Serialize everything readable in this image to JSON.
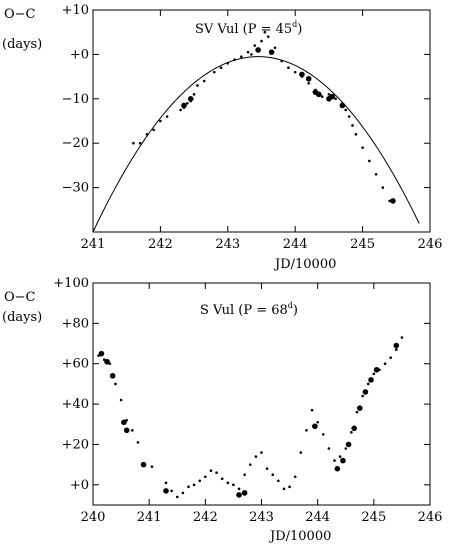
{
  "chart_data": [
    {
      "type": "scatter",
      "title_main": "SV Vul (P = 45",
      "title_sup": "d",
      "title_end": ")",
      "ylabel_line1": "O−C",
      "ylabel_line2": "(days)",
      "xlabel": "JD/10000",
      "xlim": [
        241,
        246
      ],
      "ylim": [
        -40,
        10
      ],
      "x_ticks": [
        "241",
        "242",
        "243",
        "244",
        "245",
        "246"
      ],
      "y_ticks": [
        "+10",
        "+0",
        "−10",
        "−20",
        "−30"
      ],
      "y_tick_values": [
        10,
        0,
        -10,
        -20,
        -30
      ],
      "points": [
        [
          241.6,
          -20
        ],
        [
          241.7,
          -20
        ],
        [
          241.8,
          -18
        ],
        [
          241.9,
          -17
        ],
        [
          242.0,
          -15
        ],
        [
          242.1,
          -14
        ],
        [
          242.3,
          -12.5
        ],
        [
          242.35,
          -12
        ],
        [
          242.4,
          -11
        ],
        [
          242.45,
          -10.5
        ],
        [
          242.5,
          -9
        ],
        [
          242.55,
          -7
        ],
        [
          242.65,
          -6
        ],
        [
          242.8,
          -4
        ],
        [
          242.9,
          -3
        ],
        [
          243.0,
          -2
        ],
        [
          243.1,
          -1.2
        ],
        [
          243.2,
          -0.5
        ],
        [
          243.3,
          0.5
        ],
        [
          243.35,
          0
        ],
        [
          243.4,
          2
        ],
        [
          243.5,
          3
        ],
        [
          243.55,
          5
        ],
        [
          243.6,
          4
        ],
        [
          243.7,
          1.5
        ],
        [
          243.8,
          -1.5
        ],
        [
          243.9,
          -3
        ],
        [
          244.0,
          -4
        ],
        [
          244.1,
          -5
        ],
        [
          244.2,
          -6.5
        ],
        [
          244.3,
          -8
        ],
        [
          244.4,
          -9.5
        ],
        [
          244.5,
          -9
        ],
        [
          244.6,
          -10
        ],
        [
          244.7,
          -11
        ],
        [
          244.75,
          -12.5
        ],
        [
          244.8,
          -14
        ],
        [
          244.85,
          -16
        ],
        [
          244.9,
          -18
        ],
        [
          245.0,
          -21
        ],
        [
          245.1,
          -24
        ],
        [
          245.2,
          -27
        ],
        [
          245.3,
          -30
        ],
        [
          245.4,
          -33
        ]
      ],
      "big_points": [
        [
          242.35,
          -11.5
        ],
        [
          242.45,
          -10
        ],
        [
          243.45,
          1
        ],
        [
          243.65,
          0.5
        ],
        [
          244.1,
          -4.5
        ],
        [
          244.2,
          -5.5
        ],
        [
          244.3,
          -8.5
        ],
        [
          244.35,
          -9
        ],
        [
          244.5,
          -10
        ],
        [
          244.55,
          -9.5
        ],
        [
          244.7,
          -11.5
        ],
        [
          245.45,
          -33
        ]
      ],
      "curve": "parabola through (241.0,-40), (243.45,-0.5), (245.85,-40)"
    },
    {
      "type": "scatter",
      "title_main": "S Vul (P = 68",
      "title_sup": "d",
      "title_end": ")",
      "ylabel_line1": "O−C",
      "ylabel_line2": "(days)",
      "xlabel": "JD/10000",
      "xlim": [
        240,
        246
      ],
      "ylim": [
        -10,
        100
      ],
      "x_ticks": [
        "240",
        "241",
        "242",
        "243",
        "244",
        "245",
        "246"
      ],
      "y_ticks": [
        "+100",
        "+80",
        "+60",
        "+40",
        "+20",
        "+0"
      ],
      "y_tick_values": [
        100,
        80,
        60,
        40,
        20,
        0
      ],
      "points": [
        [
          240.1,
          64
        ],
        [
          240.2,
          62
        ],
        [
          240.3,
          60
        ],
        [
          240.4,
          50
        ],
        [
          240.5,
          42
        ],
        [
          240.6,
          32
        ],
        [
          240.7,
          27
        ],
        [
          240.8,
          21
        ],
        [
          240.9,
          10
        ],
        [
          241.05,
          9
        ],
        [
          241.3,
          1
        ],
        [
          241.4,
          -3
        ],
        [
          241.5,
          -6
        ],
        [
          241.6,
          -4
        ],
        [
          241.7,
          -1
        ],
        [
          241.8,
          0
        ],
        [
          241.9,
          2
        ],
        [
          242.0,
          4
        ],
        [
          242.1,
          7
        ],
        [
          242.2,
          6
        ],
        [
          242.3,
          3
        ],
        [
          242.4,
          1
        ],
        [
          242.5,
          0
        ],
        [
          242.6,
          -2
        ],
        [
          242.7,
          5
        ],
        [
          242.8,
          10
        ],
        [
          242.9,
          14
        ],
        [
          243.0,
          16
        ],
        [
          243.1,
          8
        ],
        [
          243.2,
          5
        ],
        [
          243.3,
          2
        ],
        [
          243.4,
          -2
        ],
        [
          243.5,
          -1
        ],
        [
          243.6,
          4
        ],
        [
          243.7,
          16
        ],
        [
          243.8,
          27
        ],
        [
          243.9,
          37
        ],
        [
          244.0,
          31
        ],
        [
          244.1,
          25
        ],
        [
          244.2,
          18
        ],
        [
          244.3,
          12
        ],
        [
          244.4,
          14
        ],
        [
          244.5,
          18
        ],
        [
          244.6,
          26
        ],
        [
          244.7,
          36
        ],
        [
          244.8,
          44
        ],
        [
          244.9,
          50
        ],
        [
          245.0,
          55
        ],
        [
          245.1,
          57
        ],
        [
          245.2,
          60
        ],
        [
          245.3,
          63
        ],
        [
          245.4,
          67
        ],
        [
          245.5,
          73
        ]
      ],
      "big_points": [
        [
          240.15,
          65
        ],
        [
          240.25,
          61
        ],
        [
          240.35,
          54
        ],
        [
          240.55,
          31
        ],
        [
          240.6,
          27
        ],
        [
          240.9,
          10
        ],
        [
          241.3,
          -3
        ],
        [
          242.7,
          -4
        ],
        [
          242.6,
          -5
        ],
        [
          243.95,
          29
        ],
        [
          244.35,
          8
        ],
        [
          244.45,
          12
        ],
        [
          244.55,
          20
        ],
        [
          244.65,
          28
        ],
        [
          244.75,
          38
        ],
        [
          244.85,
          46
        ],
        [
          244.95,
          52
        ],
        [
          245.05,
          57
        ],
        [
          245.4,
          69
        ]
      ]
    }
  ]
}
